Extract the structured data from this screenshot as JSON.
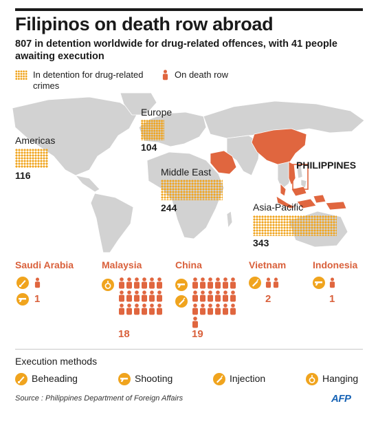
{
  "title": "Filipinos on death row abroad",
  "subtitle": "807 in detention worldwide for drug-related offences, with 41 people awaiting execution",
  "legend": {
    "detention": "In detention for drug-related crimes",
    "death_row": "On death row"
  },
  "colors": {
    "detention": "#f0a41e",
    "death_row": "#e0663f",
    "country_name": "#d9603b",
    "map_land": "#d2d2d2"
  },
  "regions": [
    {
      "name": "Americas",
      "count": "116"
    },
    {
      "name": "Europe",
      "count": "104"
    },
    {
      "name": "Middle East",
      "count": "244"
    },
    {
      "name": "Asia-Pacific",
      "count": "343"
    }
  ],
  "highlighted": {
    "label": "PHILIPPINES"
  },
  "countries": [
    {
      "name": "Saudi Arabia",
      "count": "1",
      "methods": [
        "beheading-icon",
        "shooting-icon"
      ]
    },
    {
      "name": "Malaysia",
      "count": "18",
      "methods": [
        "hanging-icon"
      ]
    },
    {
      "name": "China",
      "count": "19",
      "methods": [
        "shooting-icon",
        "injection-icon"
      ]
    },
    {
      "name": "Vietnam",
      "count": "2",
      "methods": [
        "injection-icon"
      ]
    },
    {
      "name": "Indonesia",
      "count": "1",
      "methods": [
        "shooting-icon"
      ]
    }
  ],
  "execution_methods": {
    "title": "Execution methods",
    "items": [
      "Beheading",
      "Shooting",
      "Injection",
      "Hanging"
    ]
  },
  "source": "Source : Philippines Department of Foreign Affairs",
  "credit": "AFP"
}
